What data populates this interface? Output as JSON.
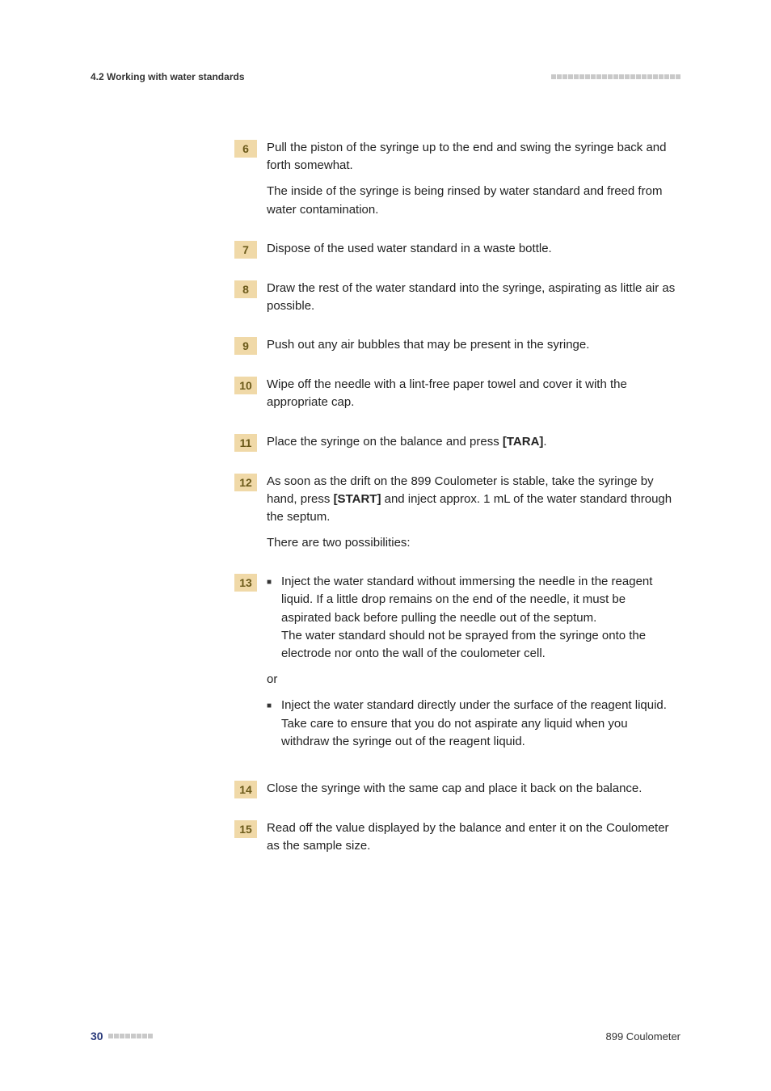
{
  "header": {
    "section": "4.2 Working with water standards",
    "dot_count": 23,
    "dot_color": "#c9c9c9"
  },
  "steps": [
    {
      "num": "6",
      "paragraphs": [
        "Pull the piston of the syringe up to the end and swing the syringe back and forth somewhat.",
        "The inside of the syringe is being rinsed by water standard and freed from water contamination."
      ]
    },
    {
      "num": "7",
      "paragraphs": [
        "Dispose of the used water standard in a waste bottle."
      ]
    },
    {
      "num": "8",
      "paragraphs": [
        "Draw the rest of the water standard into the syringe, aspirating as little air as possible."
      ]
    },
    {
      "num": "9",
      "paragraphs": [
        "Push out any air bubbles that may be present in the syringe."
      ]
    },
    {
      "num": "10",
      "paragraphs": [
        "Wipe off the needle with a lint-free paper towel and cover it with the appropriate cap."
      ]
    },
    {
      "num": "11",
      "html": "Place the syringe on the balance and press <strong>[TARA]</strong>."
    },
    {
      "num": "12",
      "html": "As soon as the drift on the 899 Coulometer is stable, take the syringe by hand, press <strong>[START]</strong> and inject approx. 1 mL of the water standard through the septum.",
      "extra": "There are two possibilities:"
    },
    {
      "num": "13",
      "sublist": [
        {
          "text1": "Inject the water standard without immersing the needle in the reagent liquid. If a little drop remains on the end of the needle, it must be aspirated back before pulling the needle out of the septum.",
          "text2": "The water standard should not be sprayed from the syringe onto the electrode nor onto the wall of the coulometer cell."
        }
      ],
      "or": "or",
      "sublist2": [
        {
          "text1": "Inject the water standard directly under the surface of the reagent liquid.",
          "text2": "Take care to ensure that you do not aspirate any liquid when you withdraw the syringe out of the reagent liquid."
        }
      ]
    },
    {
      "num": "14",
      "paragraphs": [
        "Close the syringe with the same cap and place it back on the balance."
      ]
    },
    {
      "num": "15",
      "paragraphs": [
        "Read off the value displayed by the balance and enter it on the Coulometer as the sample size."
      ]
    }
  ],
  "footer": {
    "page_number": "30",
    "dot_count": 8,
    "dot_color": "#c9c9c9",
    "device": "899 Coulometer"
  },
  "colors": {
    "step_bg": "#f0d9a8",
    "step_fg": "#6b5a1a",
    "page_num_color": "#2a3a7a"
  }
}
